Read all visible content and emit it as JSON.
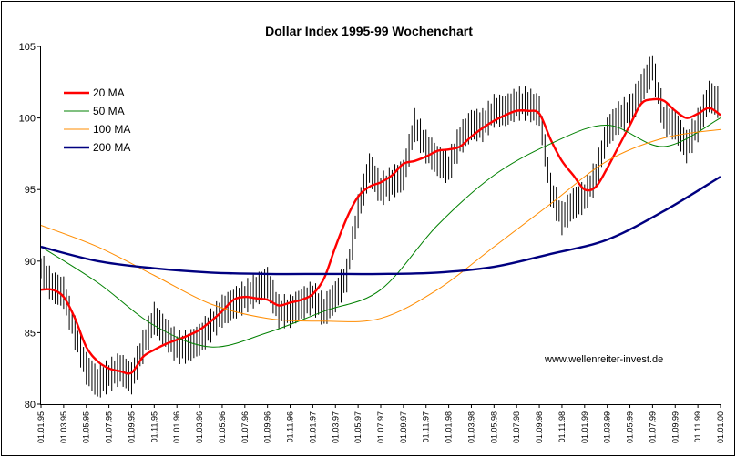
{
  "chart_data": {
    "type": "line",
    "title": "Dollar Index 1995-99 Wochenchart",
    "annotation": "www.wellenreiter-invest.de",
    "ylim": [
      80,
      105
    ],
    "yticks": [
      80,
      85,
      90,
      95,
      100,
      105
    ],
    "xlim": [
      0,
      60
    ],
    "xtick_labels": [
      "01.01.95",
      "01.03.95",
      "01.05.95",
      "01.07.95",
      "01.09.95",
      "01.11.95",
      "01.01.96",
      "01.03.96",
      "01.05.96",
      "01.07.96",
      "01.09.96",
      "01.11.96",
      "01.01.97",
      "01.03.97",
      "01.05.97",
      "01.07.97",
      "01.09.97",
      "01.11.97",
      "01.01.98",
      "01.03.98",
      "01.05.98",
      "01.07.98",
      "01.09.98",
      "01.11.98",
      "01.01.99",
      "01.03.99",
      "01.05.99",
      "01.07.99",
      "01.09.99",
      "01.11.99",
      "01.01.00"
    ],
    "grid": false,
    "legend_position": "top-left",
    "price": {
      "name": "Dollar Index",
      "color": "#000000",
      "x": [
        0,
        1,
        2,
        3,
        4,
        5,
        6,
        7,
        8,
        9,
        10,
        11,
        12,
        13,
        14,
        15,
        16,
        17,
        18,
        19,
        20,
        21,
        22,
        23,
        24,
        25,
        26,
        27,
        28,
        29,
        30,
        31,
        32,
        33,
        34,
        35,
        36,
        37,
        38,
        39,
        40,
        41,
        42,
        43,
        44,
        45,
        46,
        47,
        48,
        49,
        50,
        51,
        52,
        53,
        54,
        55,
        56,
        57,
        58,
        59,
        60
      ],
      "y": [
        89.5,
        88.2,
        87.8,
        85,
        82.5,
        81.5,
        82,
        82.5,
        81.8,
        84,
        86,
        85,
        84,
        84,
        84.5,
        85.5,
        86.5,
        87,
        87.5,
        88,
        88.5,
        86.5,
        86.5,
        87,
        87.5,
        86.5,
        87.5,
        89,
        93.5,
        96.5,
        95,
        95.5,
        96,
        99.5,
        98,
        97,
        96.5,
        98.5,
        99.5,
        99.5,
        100.5,
        100.5,
        101,
        101,
        100.5,
        95,
        93,
        94,
        94.5,
        96,
        99,
        100,
        100.5,
        102,
        103.5,
        100,
        99.5,
        98,
        99.5,
        101.5,
        101
      ]
    },
    "series": [
      {
        "name": "20 MA",
        "color": "#ff0000",
        "width": 2.4,
        "x": [
          0,
          1,
          2,
          3,
          4,
          5,
          6,
          7,
          8,
          9,
          10,
          11,
          12,
          13,
          14,
          15,
          16,
          17,
          18,
          19,
          20,
          21,
          22,
          23,
          24,
          25,
          26,
          27,
          28,
          29,
          30,
          31,
          32,
          33,
          34,
          35,
          36,
          37,
          38,
          39,
          40,
          41,
          42,
          43,
          44,
          45,
          46,
          47,
          48,
          49,
          50,
          51,
          52,
          53,
          54,
          55,
          56,
          57,
          58,
          59,
          60
        ],
        "y": [
          88,
          88,
          87.5,
          86,
          84,
          83,
          82.5,
          82.3,
          82.2,
          83.3,
          83.8,
          84.2,
          84.5,
          84.8,
          85.2,
          85.8,
          86.5,
          87.3,
          87.5,
          87.4,
          87.3,
          86.9,
          87.1,
          87.3,
          87.7,
          88.8,
          91,
          93,
          94.5,
          95.2,
          95.5,
          96,
          96.8,
          97,
          97.3,
          97.7,
          97.8,
          98,
          98.7,
          99.3,
          99.8,
          100.2,
          100.5,
          100.5,
          100.3,
          98.5,
          97,
          96,
          95,
          95.2,
          96.5,
          98,
          99.5,
          101,
          101.3,
          101.2,
          100.5,
          100,
          100.3,
          100.7,
          100.2
        ]
      },
      {
        "name": "50 MA",
        "color": "#008000",
        "width": 1,
        "x": [
          0,
          5,
          10,
          15,
          20,
          25,
          30,
          35,
          40,
          45,
          50,
          55,
          60
        ],
        "y": [
          91,
          88.5,
          85.5,
          84,
          85,
          86.5,
          88,
          92.5,
          96,
          98.2,
          99.5,
          98,
          100
        ]
      },
      {
        "name": "100 MA",
        "color": "#ff8c00",
        "width": 1,
        "x": [
          0,
          5,
          10,
          15,
          20,
          25,
          30,
          35,
          40,
          45,
          50,
          55,
          60
        ],
        "y": [
          92.5,
          91,
          89,
          87,
          86,
          85.8,
          86,
          88,
          91,
          94,
          97,
          98.6,
          99.2
        ]
      },
      {
        "name": "200 MA",
        "color": "#000080",
        "width": 2.4,
        "x": [
          0,
          5,
          10,
          15,
          20,
          25,
          30,
          35,
          40,
          45,
          50,
          55,
          60
        ],
        "y": [
          91,
          90,
          89.5,
          89.2,
          89.1,
          89.1,
          89.1,
          89.2,
          89.6,
          90.5,
          91.5,
          93.5,
          95.9
        ]
      }
    ]
  }
}
